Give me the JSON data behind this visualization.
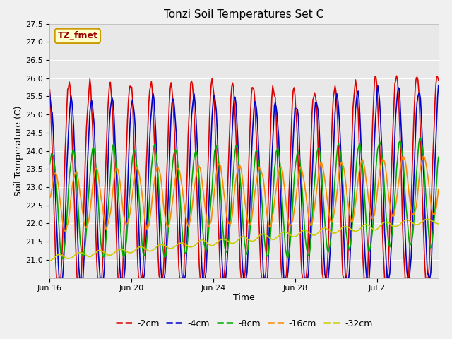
{
  "title": "Tonzi Soil Temperatures Set C",
  "xlabel": "Time",
  "ylabel": "Soil Temperature (C)",
  "ylim": [
    20.5,
    27.5
  ],
  "yticks": [
    21.0,
    21.5,
    22.0,
    22.5,
    23.0,
    23.5,
    24.0,
    24.5,
    25.0,
    25.5,
    26.0,
    26.5,
    27.0,
    27.5
  ],
  "xtick_positions": [
    0,
    4,
    8,
    12,
    16
  ],
  "xtick_labels": [
    "Jun 16",
    "Jun 20",
    "Jun 24",
    "Jun 28",
    "Jul 2"
  ],
  "xlim": [
    0,
    19
  ],
  "fig_bg": "#f0f0f0",
  "ax_bg": "#e8e8e8",
  "grid_color": "#ffffff",
  "series": [
    {
      "label": "-2cm",
      "color": "#dd0000",
      "lw": 1.2
    },
    {
      "label": "-4cm",
      "color": "#0000cc",
      "lw": 1.2
    },
    {
      "label": "-8cm",
      "color": "#00aa00",
      "lw": 1.2
    },
    {
      "label": "-16cm",
      "color": "#ff8800",
      "lw": 1.2
    },
    {
      "label": "-32cm",
      "color": "#cccc00",
      "lw": 1.2
    }
  ],
  "annot_text": "TZ_fmet",
  "annot_color": "#990000",
  "annot_bg": "#ffffcc",
  "annot_border": "#cc9900"
}
